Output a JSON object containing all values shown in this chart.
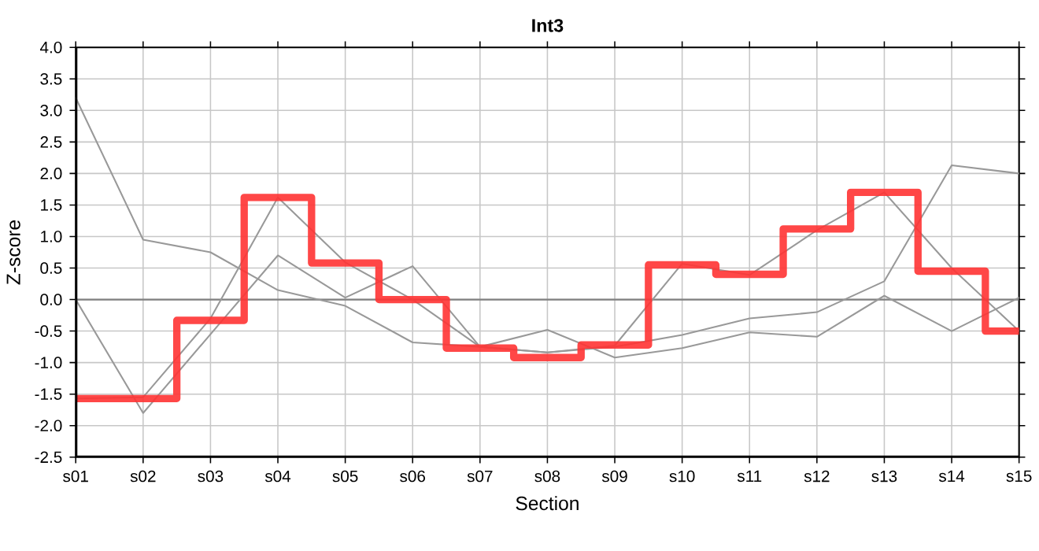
{
  "chart_data": {
    "type": "line",
    "title": "Int3",
    "xlabel": "Section",
    "ylabel": "Z-score",
    "categories": [
      "s01",
      "s02",
      "s03",
      "s04",
      "s05",
      "s06",
      "s07",
      "s08",
      "s09",
      "s10",
      "s11",
      "s12",
      "s13",
      "s14",
      "s15"
    ],
    "series": [
      {
        "color": "#999999",
        "values": [
          3.2,
          0.95,
          0.75,
          0.15,
          -0.1,
          -0.68,
          -0.75,
          -0.84,
          -0.75,
          -0.56,
          -0.3,
          -0.2,
          0.29,
          2.13,
          2.0
        ]
      },
      {
        "color": "#999999",
        "values": [
          0.0,
          -1.8,
          -0.55,
          0.7,
          0.03,
          0.53,
          -0.75,
          -0.48,
          -0.92,
          -0.77,
          -0.52,
          -0.59,
          0.06,
          -0.5,
          0.03
        ]
      },
      {
        "color": "#999999",
        "values": [
          -1.57,
          -1.55,
          -0.3,
          1.62,
          0.59,
          0.0,
          -0.75,
          -0.84,
          -0.73,
          0.57,
          0.39,
          1.1,
          1.7,
          0.5,
          -0.5
        ]
      },
      {
        "type": "step",
        "color": "#ff3333",
        "values": [
          -1.57,
          -1.57,
          -0.33,
          1.62,
          0.58,
          0.0,
          -0.77,
          -0.92,
          -0.72,
          0.55,
          0.4,
          1.12,
          1.7,
          0.45,
          -0.5
        ]
      }
    ],
    "ylim": [
      -2.5,
      4.0
    ],
    "yticks": [
      {
        "value": -2.5,
        "label": "-2.5"
      },
      {
        "value": -2.0,
        "label": "-2.0"
      },
      {
        "value": -1.5,
        "label": "-1.5"
      },
      {
        "value": -1.0,
        "label": "-1.0"
      },
      {
        "value": -0.5,
        "label": "-0.5"
      },
      {
        "value": 0.0,
        "label": "0.0"
      },
      {
        "value": 0.5,
        "label": "0.5"
      },
      {
        "value": 1.0,
        "label": "1.0"
      },
      {
        "value": 1.5,
        "label": "1.5"
      },
      {
        "value": 2.0,
        "label": "2.0"
      },
      {
        "value": 2.5,
        "label": "2.5"
      },
      {
        "value": 3.0,
        "label": "3.0"
      },
      {
        "value": 3.5,
        "label": "3.5"
      },
      {
        "value": 4.0,
        "label": "4.0"
      }
    ],
    "ref_lines": [
      {
        "axis": "y",
        "value": 0.0,
        "color": "#808080"
      }
    ],
    "grid": true
  }
}
